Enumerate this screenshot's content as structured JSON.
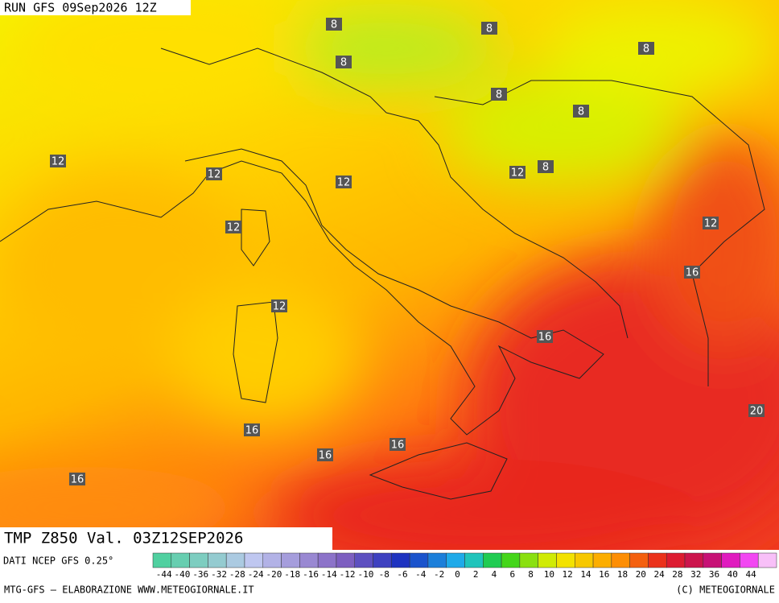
{
  "header": {
    "run": "RUN GFS 09Sep2026 12Z"
  },
  "map": {
    "contour_labels": [
      8,
      8,
      8,
      8,
      8,
      8,
      8,
      12,
      12,
      12,
      12,
      12,
      12,
      12,
      16,
      16,
      16,
      16,
      16,
      16,
      20
    ]
  },
  "caption": {
    "field": "TMP  Z850  Val. 03Z12SEP2026",
    "source": "DATI NCEP GFS 0.25°"
  },
  "scale": {
    "ticks": [
      -44,
      -40,
      -36,
      -32,
      -28,
      -24,
      -20,
      -18,
      -16,
      -14,
      -12,
      -10,
      -8,
      -6,
      -4,
      -2,
      0,
      2,
      4,
      6,
      8,
      10,
      12,
      14,
      16,
      18,
      20,
      24,
      28,
      32,
      36,
      40,
      44
    ]
  },
  "footer": {
    "left": "MTG-GFS — ELABORAZIONE WWW.METEOGIORNALE.IT",
    "right": "(C) METEOGIORNALE"
  }
}
